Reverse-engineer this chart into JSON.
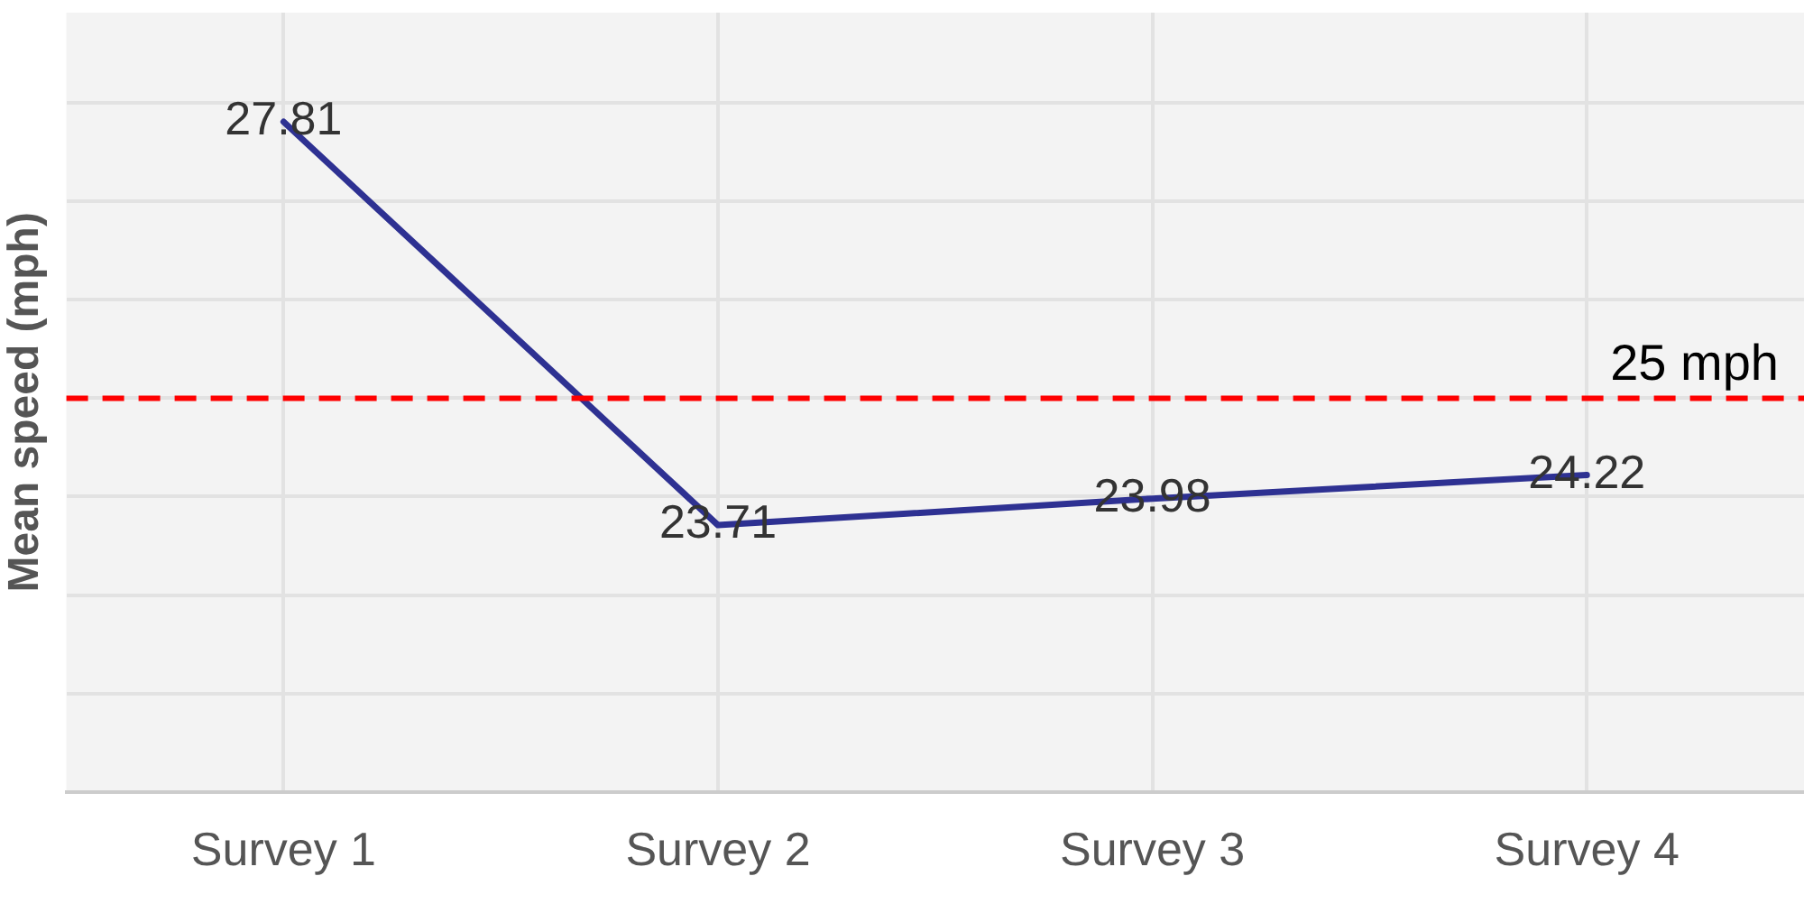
{
  "chart_data": {
    "type": "line",
    "ylabel": "Mean speed (mph)",
    "categories": [
      "Survey 1",
      "Survey 2",
      "Survey 3",
      "Survey 4"
    ],
    "series": [
      {
        "color": "#2e3192",
        "values": [
          27.81,
          23.71,
          23.98,
          24.22
        ]
      }
    ],
    "ylim": [
      21,
      28.92
    ],
    "yticks": [
      {
        "value": 21,
        "label": null
      },
      {
        "value": 22,
        "label": null
      },
      {
        "value": 23,
        "label": null
      },
      {
        "value": 24,
        "label": null
      },
      {
        "value": 25,
        "label": null
      },
      {
        "value": 26,
        "label": null
      },
      {
        "value": 27,
        "label": null
      },
      {
        "value": 28,
        "label": null
      }
    ],
    "tick_labels": "x",
    "ref_lines": [
      {
        "axis": "y",
        "value": 25,
        "label": "25 mph",
        "color": "#ff0000",
        "line_style": "dashed"
      }
    ],
    "data_labels": true,
    "grid": true,
    "legend": false,
    "marker": "none",
    "line_style": "solid"
  }
}
